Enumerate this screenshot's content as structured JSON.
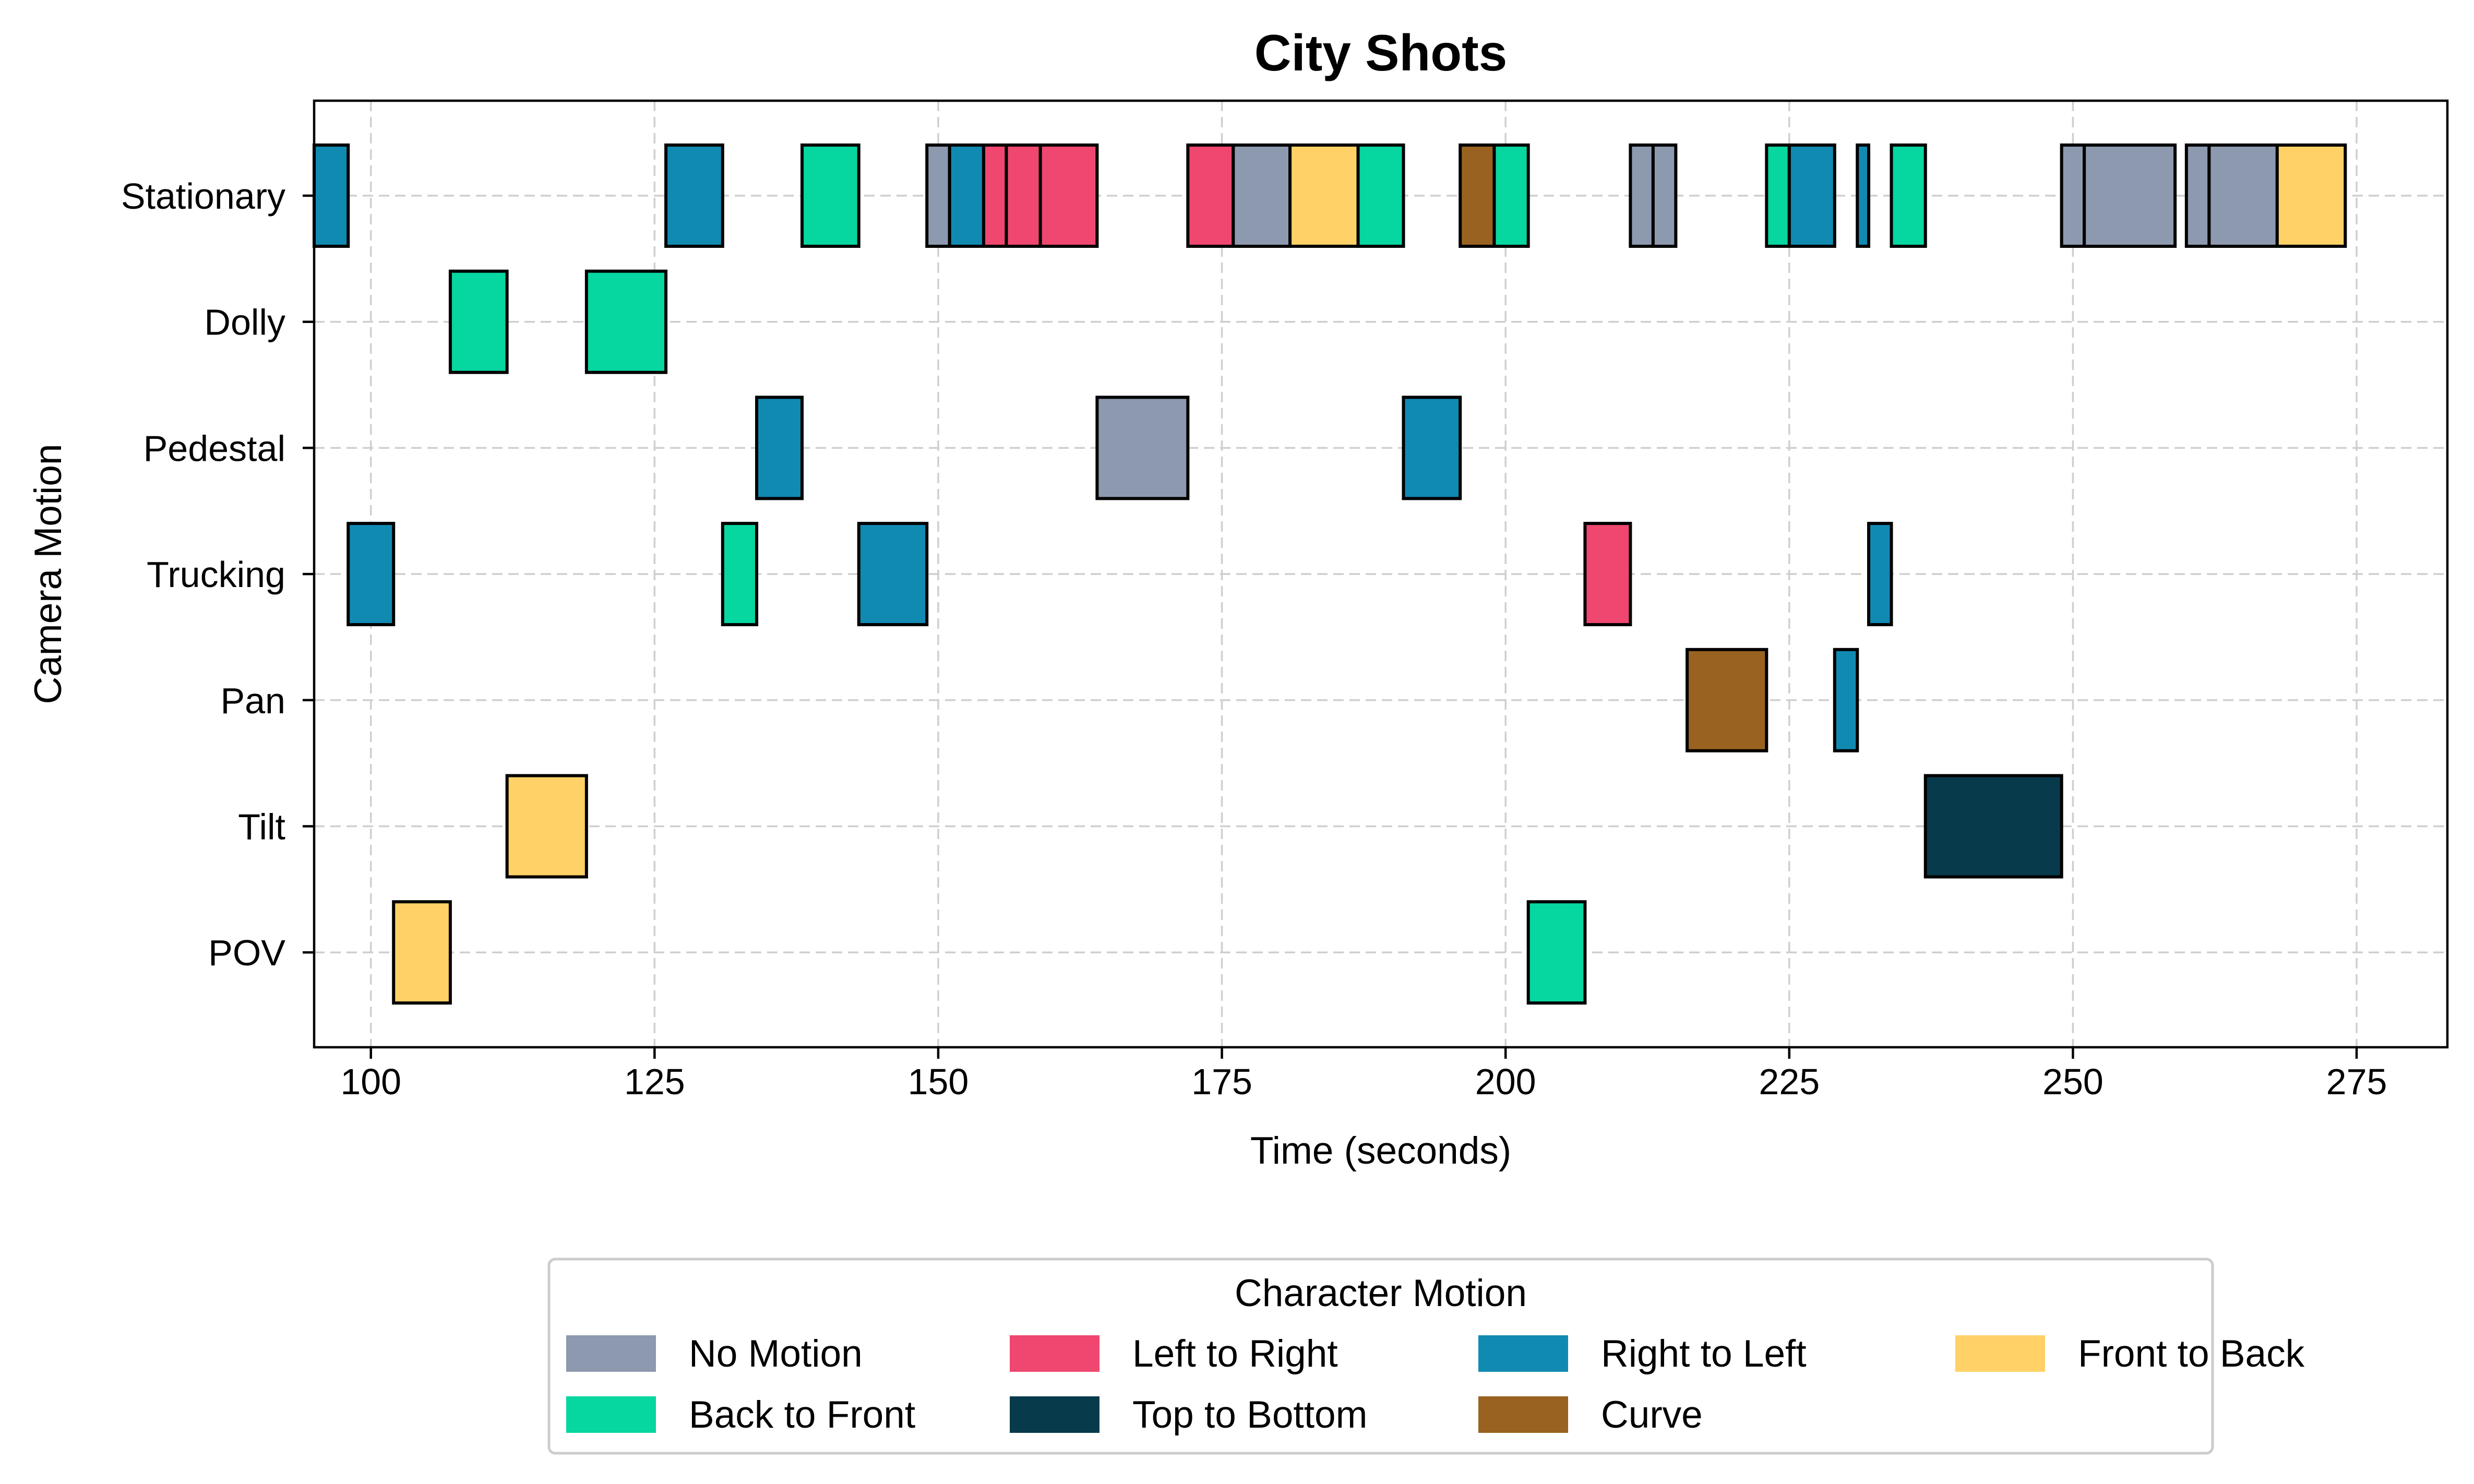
{
  "chart_data": {
    "type": "bar",
    "orientation": "horizontal-timeline",
    "title": "City Shots",
    "xlabel": "Time (seconds)",
    "ylabel": "Camera Motion",
    "xlim": [
      95,
      283
    ],
    "xticks": [
      100,
      125,
      150,
      175,
      200,
      225,
      250,
      275
    ],
    "grid": true,
    "legend": {
      "title": "Character Motion",
      "placement": "bottom-center",
      "columns": 4
    },
    "categories": [
      "Stationary",
      "Dolly",
      "Pedestal",
      "Trucking",
      "Pan",
      "Tilt",
      "POV"
    ],
    "series": [
      {
        "name": "No Motion",
        "color": "#8D99AE"
      },
      {
        "name": "Left to Right",
        "color": "#EF476F"
      },
      {
        "name": "Right to Left",
        "color": "#118AB2"
      },
      {
        "name": "Front to Back",
        "color": "#FFD166"
      },
      {
        "name": "Back to Front",
        "color": "#06D6A0"
      },
      {
        "name": "Top to Bottom",
        "color": "#073B4C"
      },
      {
        "name": "Curve",
        "color": "#996220"
      }
    ],
    "shots": [
      {
        "row": "Stationary",
        "start": 95,
        "end": 98,
        "motion": "Right to Left"
      },
      {
        "row": "Stationary",
        "start": 126,
        "end": 131,
        "motion": "Right to Left"
      },
      {
        "row": "Stationary",
        "start": 138,
        "end": 143,
        "motion": "Back to Front"
      },
      {
        "row": "Stationary",
        "start": 149,
        "end": 151,
        "motion": "No Motion"
      },
      {
        "row": "Stationary",
        "start": 151,
        "end": 154,
        "motion": "Right to Left"
      },
      {
        "row": "Stationary",
        "start": 154,
        "end": 156,
        "motion": "Left to Right"
      },
      {
        "row": "Stationary",
        "start": 156,
        "end": 159,
        "motion": "Left to Right"
      },
      {
        "row": "Stationary",
        "start": 159,
        "end": 164,
        "motion": "Left to Right"
      },
      {
        "row": "Stationary",
        "start": 172,
        "end": 176,
        "motion": "Left to Right"
      },
      {
        "row": "Stationary",
        "start": 176,
        "end": 181,
        "motion": "No Motion"
      },
      {
        "row": "Stationary",
        "start": 181,
        "end": 187,
        "motion": "Front to Back"
      },
      {
        "row": "Stationary",
        "start": 187,
        "end": 191,
        "motion": "Back to Front"
      },
      {
        "row": "Stationary",
        "start": 196,
        "end": 199,
        "motion": "Curve"
      },
      {
        "row": "Stationary",
        "start": 199,
        "end": 202,
        "motion": "Back to Front"
      },
      {
        "row": "Stationary",
        "start": 211,
        "end": 213,
        "motion": "No Motion"
      },
      {
        "row": "Stationary",
        "start": 213,
        "end": 215,
        "motion": "No Motion"
      },
      {
        "row": "Stationary",
        "start": 223,
        "end": 225,
        "motion": "Back to Front"
      },
      {
        "row": "Stationary",
        "start": 225,
        "end": 229,
        "motion": "Right to Left"
      },
      {
        "row": "Stationary",
        "start": 231,
        "end": 232,
        "motion": "Right to Left"
      },
      {
        "row": "Stationary",
        "start": 234,
        "end": 237,
        "motion": "Back to Front"
      },
      {
        "row": "Stationary",
        "start": 249,
        "end": 251,
        "motion": "No Motion"
      },
      {
        "row": "Stationary",
        "start": 251,
        "end": 259,
        "motion": "No Motion"
      },
      {
        "row": "Stationary",
        "start": 260,
        "end": 262,
        "motion": "No Motion"
      },
      {
        "row": "Stationary",
        "start": 262,
        "end": 268,
        "motion": "No Motion"
      },
      {
        "row": "Stationary",
        "start": 268,
        "end": 274,
        "motion": "Front to Back"
      },
      {
        "row": "Dolly",
        "start": 107,
        "end": 112,
        "motion": "Back to Front"
      },
      {
        "row": "Dolly",
        "start": 119,
        "end": 126,
        "motion": "Back to Front"
      },
      {
        "row": "Pedestal",
        "start": 134,
        "end": 138,
        "motion": "Right to Left"
      },
      {
        "row": "Pedestal",
        "start": 164,
        "end": 172,
        "motion": "No Motion"
      },
      {
        "row": "Pedestal",
        "start": 191,
        "end": 196,
        "motion": "Right to Left"
      },
      {
        "row": "Trucking",
        "start": 98,
        "end": 102,
        "motion": "Right to Left"
      },
      {
        "row": "Trucking",
        "start": 131,
        "end": 134,
        "motion": "Back to Front"
      },
      {
        "row": "Trucking",
        "start": 143,
        "end": 149,
        "motion": "Right to Left"
      },
      {
        "row": "Trucking",
        "start": 207,
        "end": 211,
        "motion": "Left to Right"
      },
      {
        "row": "Trucking",
        "start": 232,
        "end": 234,
        "motion": "Right to Left"
      },
      {
        "row": "Pan",
        "start": 216,
        "end": 223,
        "motion": "Curve"
      },
      {
        "row": "Pan",
        "start": 229,
        "end": 231,
        "motion": "Right to Left"
      },
      {
        "row": "Tilt",
        "start": 112,
        "end": 119,
        "motion": "Front to Back"
      },
      {
        "row": "Tilt",
        "start": 237,
        "end": 249,
        "motion": "Top to Bottom"
      },
      {
        "row": "POV",
        "start": 102,
        "end": 107,
        "motion": "Front to Back"
      },
      {
        "row": "POV",
        "start": 202,
        "end": 207,
        "motion": "Back to Front"
      }
    ]
  }
}
